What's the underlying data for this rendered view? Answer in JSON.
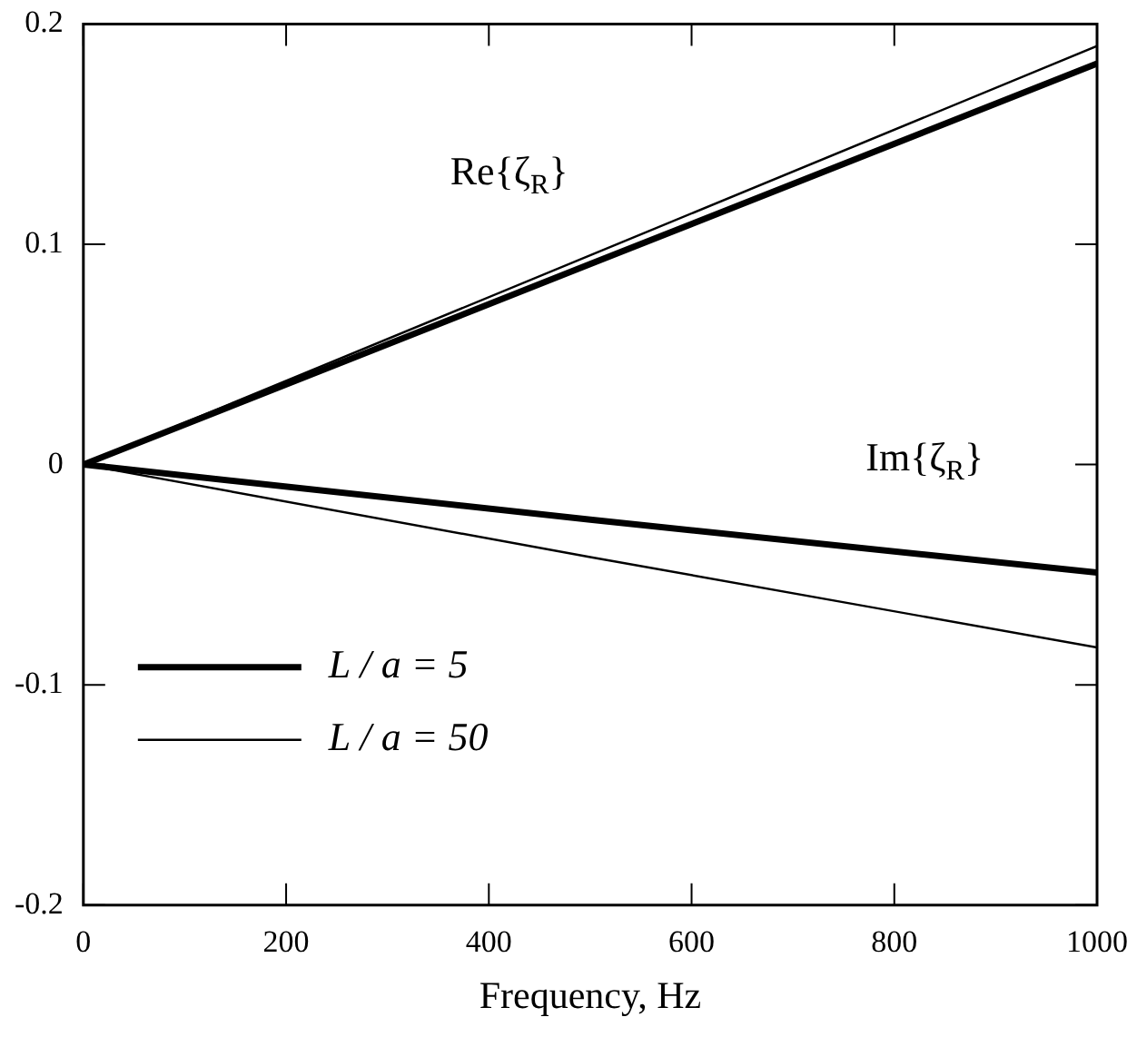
{
  "chart_data": {
    "type": "line",
    "xlabel": "Frequency, Hz",
    "xlim": [
      0,
      1000
    ],
    "xticks": [
      0,
      200,
      400,
      600,
      800,
      1000
    ],
    "ylim": [
      -0.2,
      0.2
    ],
    "yticks": [
      -0.2,
      -0.1,
      0,
      0.1,
      0.2
    ],
    "grid": false,
    "legend": "left",
    "line_style": "solid",
    "marker": "none",
    "x": [
      0,
      500,
      1000
    ],
    "series": [
      {
        "name": "L / a = 5",
        "color": "#000000",
        "values": [
          0,
          0.091,
          0.182
        ]
      },
      {
        "name": "L / a = 50",
        "color": "#000000",
        "values": [
          0,
          0.095,
          0.19
        ]
      },
      {
        "color": "#000000",
        "values": [
          0,
          -0.025,
          -0.049
        ]
      },
      {
        "color": "#000000",
        "values": [
          0,
          -0.042,
          -0.083
        ]
      }
    ],
    "annotations": [
      "Re{ζ$_{R}$}",
      "Im{ζ$_{R}$}"
    ]
  }
}
